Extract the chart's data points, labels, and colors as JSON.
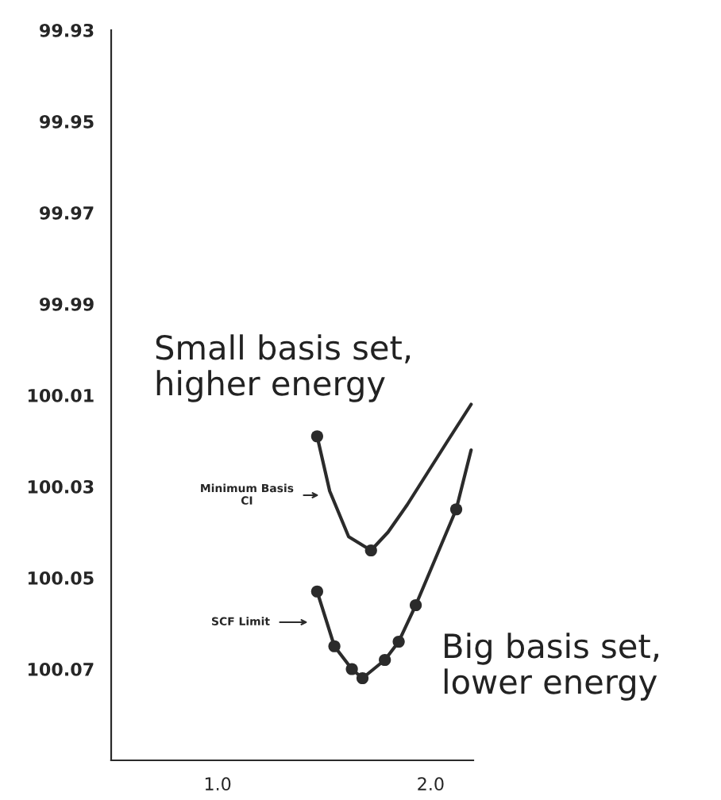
{
  "chart_data": {
    "type": "line",
    "xlim": [
      0.5,
      2.2
    ],
    "xticks": [
      {
        "value": 1,
        "label": "1.0"
      },
      {
        "value": 2,
        "label": "2.0"
      }
    ],
    "ylim": [
      100.09,
      99.93
    ],
    "yticks": [
      99.93,
      99.95,
      99.97,
      99.99,
      100.01,
      100.03,
      100.05,
      100.07
    ],
    "grid": false,
    "legend": false,
    "series": [
      {
        "color": "#2b2b2b",
        "x": [
          1.467,
          1.526,
          1.615,
          1.72,
          1.8,
          1.89,
          2.08,
          2.19
        ],
        "values": [
          100.019,
          100.031,
          100.041,
          100.044,
          100.04,
          100.034,
          100.02,
          100.012
        ]
      },
      {
        "type": "scatter",
        "marker": "circle",
        "color": "#2b2b2b",
        "x": [
          1.467,
          1.72
        ],
        "values": [
          100.019,
          100.044
        ]
      },
      {
        "color": "#2b2b2b",
        "x": [
          1.467,
          1.548,
          1.63,
          1.68,
          1.785,
          1.85,
          1.93,
          2.12,
          2.19
        ],
        "values": [
          100.053,
          100.065,
          100.07,
          100.072,
          100.068,
          100.064,
          100.056,
          100.035,
          100.022
        ]
      },
      {
        "type": "scatter",
        "marker": "circle",
        "color": "#2b2b2b",
        "x": [
          1.467,
          1.548,
          1.63,
          1.68,
          1.785,
          1.85,
          1.93,
          2.12
        ],
        "values": [
          100.053,
          100.065,
          100.07,
          100.072,
          100.068,
          100.064,
          100.056,
          100.035
        ]
      }
    ],
    "annotations": [
      "Minimum Basis\nCI",
      "SCF Limit",
      "Small basis set,\nhigher energy",
      "Big basis set,\nlower energy"
    ]
  }
}
